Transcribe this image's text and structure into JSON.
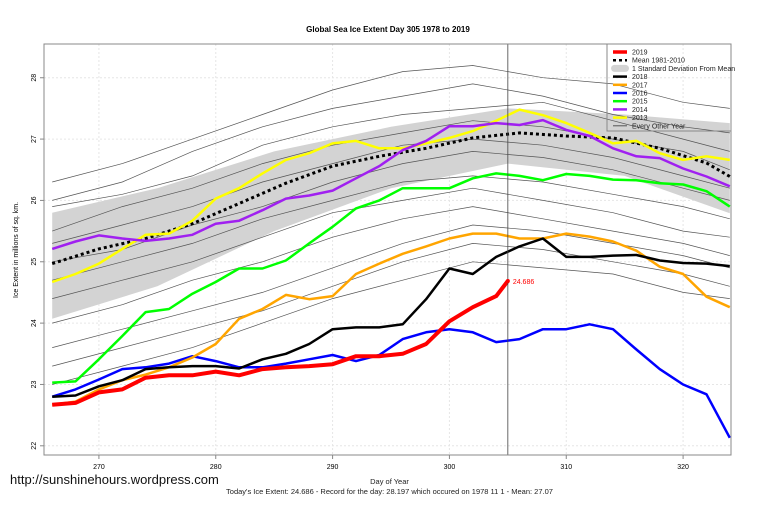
{
  "watermark": "http://sunshinehours.wordpress.com",
  "footer": "Today's Ice Extent: 24.686  - Record for the day: 28.197 which occured on 1978 11 1  - Mean: 27.07",
  "chart_data": {
    "type": "line",
    "title": "Global Sea Ice Extent Day 305 1978 to 2019",
    "xlabel": "Day of Year",
    "ylabel": "Ice Extent in millions of sq. km.",
    "xlim": [
      265.3,
      324.1
    ],
    "ylim": [
      21.85,
      28.55
    ],
    "xticks": [
      270,
      280,
      290,
      300,
      310,
      320
    ],
    "yticks": [
      22,
      23,
      24,
      25,
      26,
      27,
      28
    ],
    "grid": true,
    "legend_position": "top-right",
    "marker_day": 305,
    "annotation": {
      "x": 305,
      "y": 24.686,
      "text": "24.686",
      "color": "#ff0000"
    },
    "legend": [
      "2019",
      "Mean 1981-2010",
      "1 Standard Deviation From Mean",
      "2018",
      "2017",
      "2016",
      "2015",
      "2014",
      "2013",
      "Every Other Year"
    ],
    "sd_band": {
      "x": [
        266,
        275,
        285,
        295,
        305,
        315,
        324
      ],
      "lower": [
        24.07,
        24.6,
        25.5,
        26.2,
        26.6,
        26.4,
        25.79
      ],
      "upper": [
        25.8,
        26.2,
        26.8,
        27.2,
        27.5,
        27.4,
        27.26
      ],
      "color": "#d3d3d3"
    },
    "mean": {
      "x": [
        266,
        270,
        274,
        278,
        282,
        286,
        290,
        294,
        298,
        302,
        306,
        310,
        314,
        318,
        322,
        324
      ],
      "y": [
        24.97,
        25.21,
        25.38,
        25.62,
        25.95,
        26.28,
        26.56,
        26.72,
        26.85,
        27.02,
        27.1,
        27.05,
        27.02,
        26.85,
        26.61,
        26.39
      ]
    },
    "other_years": {
      "color": "#555555",
      "x": [
        266,
        272,
        278,
        284,
        290,
        296,
        302,
        308,
        314,
        320,
        324
      ],
      "lines": [
        [
          26.3,
          26.6,
          27.0,
          27.4,
          27.8,
          28.1,
          28.2,
          28.0,
          27.9,
          27.6,
          27.5
        ],
        [
          26.0,
          26.3,
          26.8,
          27.2,
          27.5,
          27.7,
          27.9,
          27.7,
          27.4,
          27.2,
          27.1
        ],
        [
          25.9,
          26.1,
          26.4,
          26.9,
          27.2,
          27.4,
          27.5,
          27.6,
          27.3,
          27.0,
          26.8
        ],
        [
          25.5,
          25.9,
          26.2,
          26.6,
          26.9,
          27.1,
          27.3,
          27.2,
          27.0,
          26.8,
          26.5
        ],
        [
          25.3,
          25.6,
          25.9,
          26.3,
          26.6,
          26.9,
          27.0,
          26.9,
          26.7,
          26.4,
          26.2
        ],
        [
          25.0,
          25.2,
          25.6,
          25.9,
          26.3,
          26.6,
          26.8,
          26.7,
          26.5,
          26.2,
          26.0
        ],
        [
          24.7,
          25.0,
          25.3,
          25.7,
          26.0,
          26.3,
          26.4,
          26.3,
          26.1,
          25.9,
          25.7
        ],
        [
          24.4,
          24.7,
          25.0,
          25.4,
          25.8,
          26.0,
          26.2,
          26.0,
          25.8,
          25.5,
          25.4
        ],
        [
          24.0,
          24.3,
          24.7,
          25.0,
          25.4,
          25.7,
          25.9,
          25.7,
          25.5,
          25.3,
          25.1
        ],
        [
          23.6,
          23.9,
          24.2,
          24.5,
          24.9,
          25.3,
          25.6,
          25.5,
          25.3,
          25.1,
          24.9
        ],
        [
          23.3,
          23.6,
          23.9,
          24.2,
          24.6,
          25.0,
          25.3,
          25.2,
          25.0,
          24.8,
          24.6
        ],
        [
          23.0,
          23.3,
          23.6,
          24.0,
          24.4,
          24.7,
          25.0,
          24.9,
          24.8,
          24.5,
          24.4
        ]
      ]
    },
    "series": [
      {
        "name": "2013",
        "color": "#ffff00",
        "x": [
          266,
          268,
          270,
          272,
          274,
          276,
          278,
          280,
          282,
          284,
          286,
          288,
          290,
          292,
          294,
          296,
          298,
          300,
          302,
          304,
          306,
          308,
          310,
          312,
          314,
          316,
          318,
          320,
          322,
          324
        ],
        "y": [
          24.67,
          24.8,
          24.97,
          25.21,
          25.44,
          25.46,
          25.67,
          26.03,
          26.2,
          26.44,
          26.66,
          26.77,
          26.93,
          26.97,
          26.85,
          26.85,
          26.93,
          27.02,
          27.13,
          27.3,
          27.48,
          27.39,
          27.26,
          27.1,
          26.93,
          26.97,
          26.77,
          26.66,
          26.72,
          26.66
        ]
      },
      {
        "name": "2014",
        "color": "#a020f0",
        "x": [
          266,
          268,
          270,
          272,
          274,
          276,
          278,
          280,
          282,
          284,
          286,
          288,
          290,
          292,
          294,
          296,
          298,
          300,
          302,
          304,
          306,
          308,
          310,
          312,
          314,
          316,
          318,
          320,
          322,
          324
        ],
        "y": [
          25.21,
          25.33,
          25.43,
          25.38,
          25.34,
          25.38,
          25.44,
          25.62,
          25.67,
          25.84,
          26.03,
          26.08,
          26.16,
          26.36,
          26.56,
          26.82,
          26.97,
          27.21,
          27.21,
          27.26,
          27.23,
          27.31,
          27.15,
          27.05,
          26.85,
          26.72,
          26.69,
          26.52,
          26.39,
          26.23
        ]
      },
      {
        "name": "2015",
        "color": "#00ff00",
        "x": [
          266,
          268,
          270,
          272,
          274,
          276,
          278,
          280,
          282,
          284,
          286,
          288,
          290,
          292,
          294,
          296,
          298,
          300,
          302,
          304,
          306,
          308,
          310,
          312,
          314,
          316,
          318,
          320,
          322,
          324
        ],
        "y": [
          23.03,
          23.05,
          23.41,
          23.79,
          24.18,
          24.23,
          24.48,
          24.67,
          24.89,
          24.89,
          25.02,
          25.3,
          25.57,
          25.87,
          26.0,
          26.2,
          26.2,
          26.2,
          26.36,
          26.44,
          26.4,
          26.33,
          26.43,
          26.4,
          26.34,
          26.33,
          26.28,
          26.26,
          26.15,
          25.9
        ]
      },
      {
        "name": "2016",
        "color": "#0000ff",
        "x": [
          266,
          268,
          270,
          272,
          274,
          276,
          278,
          280,
          282,
          284,
          286,
          288,
          290,
          292,
          294,
          296,
          298,
          300,
          302,
          304,
          306,
          308,
          310,
          312,
          314,
          316,
          318,
          320,
          322,
          324
        ],
        "y": [
          22.8,
          22.92,
          23.08,
          23.25,
          23.28,
          23.34,
          23.46,
          23.38,
          23.28,
          23.28,
          23.34,
          23.41,
          23.48,
          23.38,
          23.48,
          23.74,
          23.85,
          23.9,
          23.85,
          23.69,
          23.74,
          23.9,
          23.9,
          23.98,
          23.9,
          23.57,
          23.25,
          23.0,
          22.84,
          22.13
        ]
      },
      {
        "name": "2017",
        "color": "#ffa500",
        "x": [
          266,
          268,
          270,
          272,
          274,
          276,
          278,
          280,
          282,
          284,
          286,
          288,
          290,
          292,
          294,
          296,
          298,
          300,
          302,
          304,
          306,
          308,
          310,
          312,
          314,
          316,
          318,
          320,
          322,
          324
        ],
        "y": [
          22.67,
          22.72,
          22.92,
          23.07,
          23.16,
          23.28,
          23.44,
          23.66,
          24.07,
          24.23,
          24.46,
          24.39,
          24.44,
          24.8,
          24.97,
          25.13,
          25.25,
          25.38,
          25.46,
          25.46,
          25.38,
          25.38,
          25.46,
          25.41,
          25.33,
          25.18,
          24.92,
          24.8,
          24.43,
          24.26
        ]
      },
      {
        "name": "2018",
        "color": "#000000",
        "x": [
          266,
          268,
          270,
          272,
          274,
          276,
          278,
          280,
          282,
          284,
          286,
          288,
          290,
          292,
          294,
          296,
          298,
          300,
          302,
          304,
          306,
          308,
          310,
          312,
          314,
          316,
          318,
          320,
          322,
          324
        ],
        "y": [
          22.8,
          22.82,
          22.97,
          23.07,
          23.25,
          23.28,
          23.3,
          23.3,
          23.26,
          23.41,
          23.5,
          23.66,
          23.9,
          23.93,
          23.93,
          23.98,
          24.39,
          24.89,
          24.8,
          25.08,
          25.25,
          25.38,
          25.08,
          25.08,
          25.1,
          25.11,
          25.02,
          24.98,
          24.97,
          24.93
        ]
      },
      {
        "name": "2019",
        "color": "#ff0000",
        "x": [
          266,
          268,
          270,
          272,
          274,
          276,
          278,
          280,
          282,
          284,
          286,
          288,
          290,
          292,
          294,
          296,
          298,
          300,
          302,
          304,
          305
        ],
        "y": [
          22.67,
          22.7,
          22.87,
          22.92,
          23.11,
          23.15,
          23.15,
          23.21,
          23.15,
          23.25,
          23.28,
          23.3,
          23.33,
          23.46,
          23.46,
          23.5,
          23.66,
          24.03,
          24.26,
          24.44,
          24.686
        ]
      }
    ]
  }
}
